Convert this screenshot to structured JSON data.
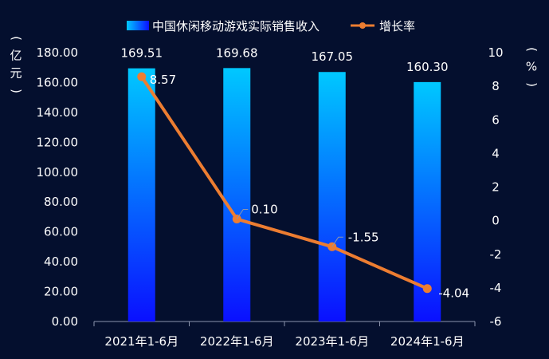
{
  "chart_data": {
    "type": "bar+line",
    "categories": [
      "2021年1-6月",
      "2022年1-6月",
      "2023年1-6月",
      "2024年1-6月"
    ],
    "series": [
      {
        "name": "中国休闲移动游戏实际销售收入",
        "type": "bar",
        "axis": "left",
        "values": [
          169.51,
          169.68,
          167.05,
          160.3
        ],
        "value_labels": [
          "169.51",
          "169.68",
          "167.05",
          "160.30"
        ],
        "color": "#1a6cff"
      },
      {
        "name": "增长率",
        "type": "line",
        "axis": "right",
        "values": [
          8.57,
          0.1,
          -1.55,
          -4.04
        ],
        "value_labels": [
          "8.57",
          "0.10",
          "-1.55",
          "-4.04"
        ],
        "color": "#ed7d31"
      }
    ],
    "y_left": {
      "label": "（亿元）",
      "ylim": [
        0,
        180
      ],
      "ticks": [
        "0.00",
        "20.00",
        "40.00",
        "60.00",
        "80.00",
        "100.00",
        "120.00",
        "140.00",
        "160.00",
        "180.00"
      ]
    },
    "y_right": {
      "label": "（%）",
      "ylim": [
        -6,
        10
      ],
      "ticks": [
        "-6",
        "-4",
        "-2",
        "0",
        "2",
        "4",
        "6",
        "8",
        "10"
      ]
    },
    "legend_position": "top-center",
    "grid": false,
    "background": "#040f2e"
  }
}
